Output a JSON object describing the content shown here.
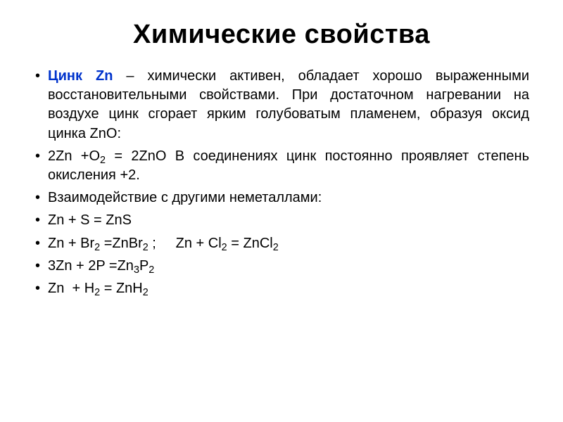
{
  "title": "Химические свойства",
  "accent_color": "#0033cc",
  "text_color": "#000000",
  "background": "#ffffff",
  "fontsizes": {
    "title": 38,
    "body": 20
  },
  "bullets": {
    "b1_accent": "Цинк Zn",
    "b1_rest": " – химически активен, обладает хорошо выраженными восстановительными свойствами. При достаточном нагревании на воздухе цинк сгорает ярким голубоватым пламенем, образуя оксид цинка ZnO:",
    "b2_pre": "2Zn +O",
    "b2_mid": " = 2ZnO В соединениях цинк постоянно проявляет степень окисления +2.",
    "b3": "Взаимодействие с другими неметаллами:",
    "b4": "Zn + S = ZnS",
    "b5_a": "Zn + Br",
    "b5_b": " =ZnBr",
    "b5_c": " ;     Zn + Cl",
    "b5_d": " = ZnCl",
    "b6_a": "3Zn + 2P =Zn",
    "b6_b": "P",
    "b7_a": "Zn  + H",
    "b7_b": " = ZnH",
    "sub2": "2",
    "sub3": "3"
  }
}
